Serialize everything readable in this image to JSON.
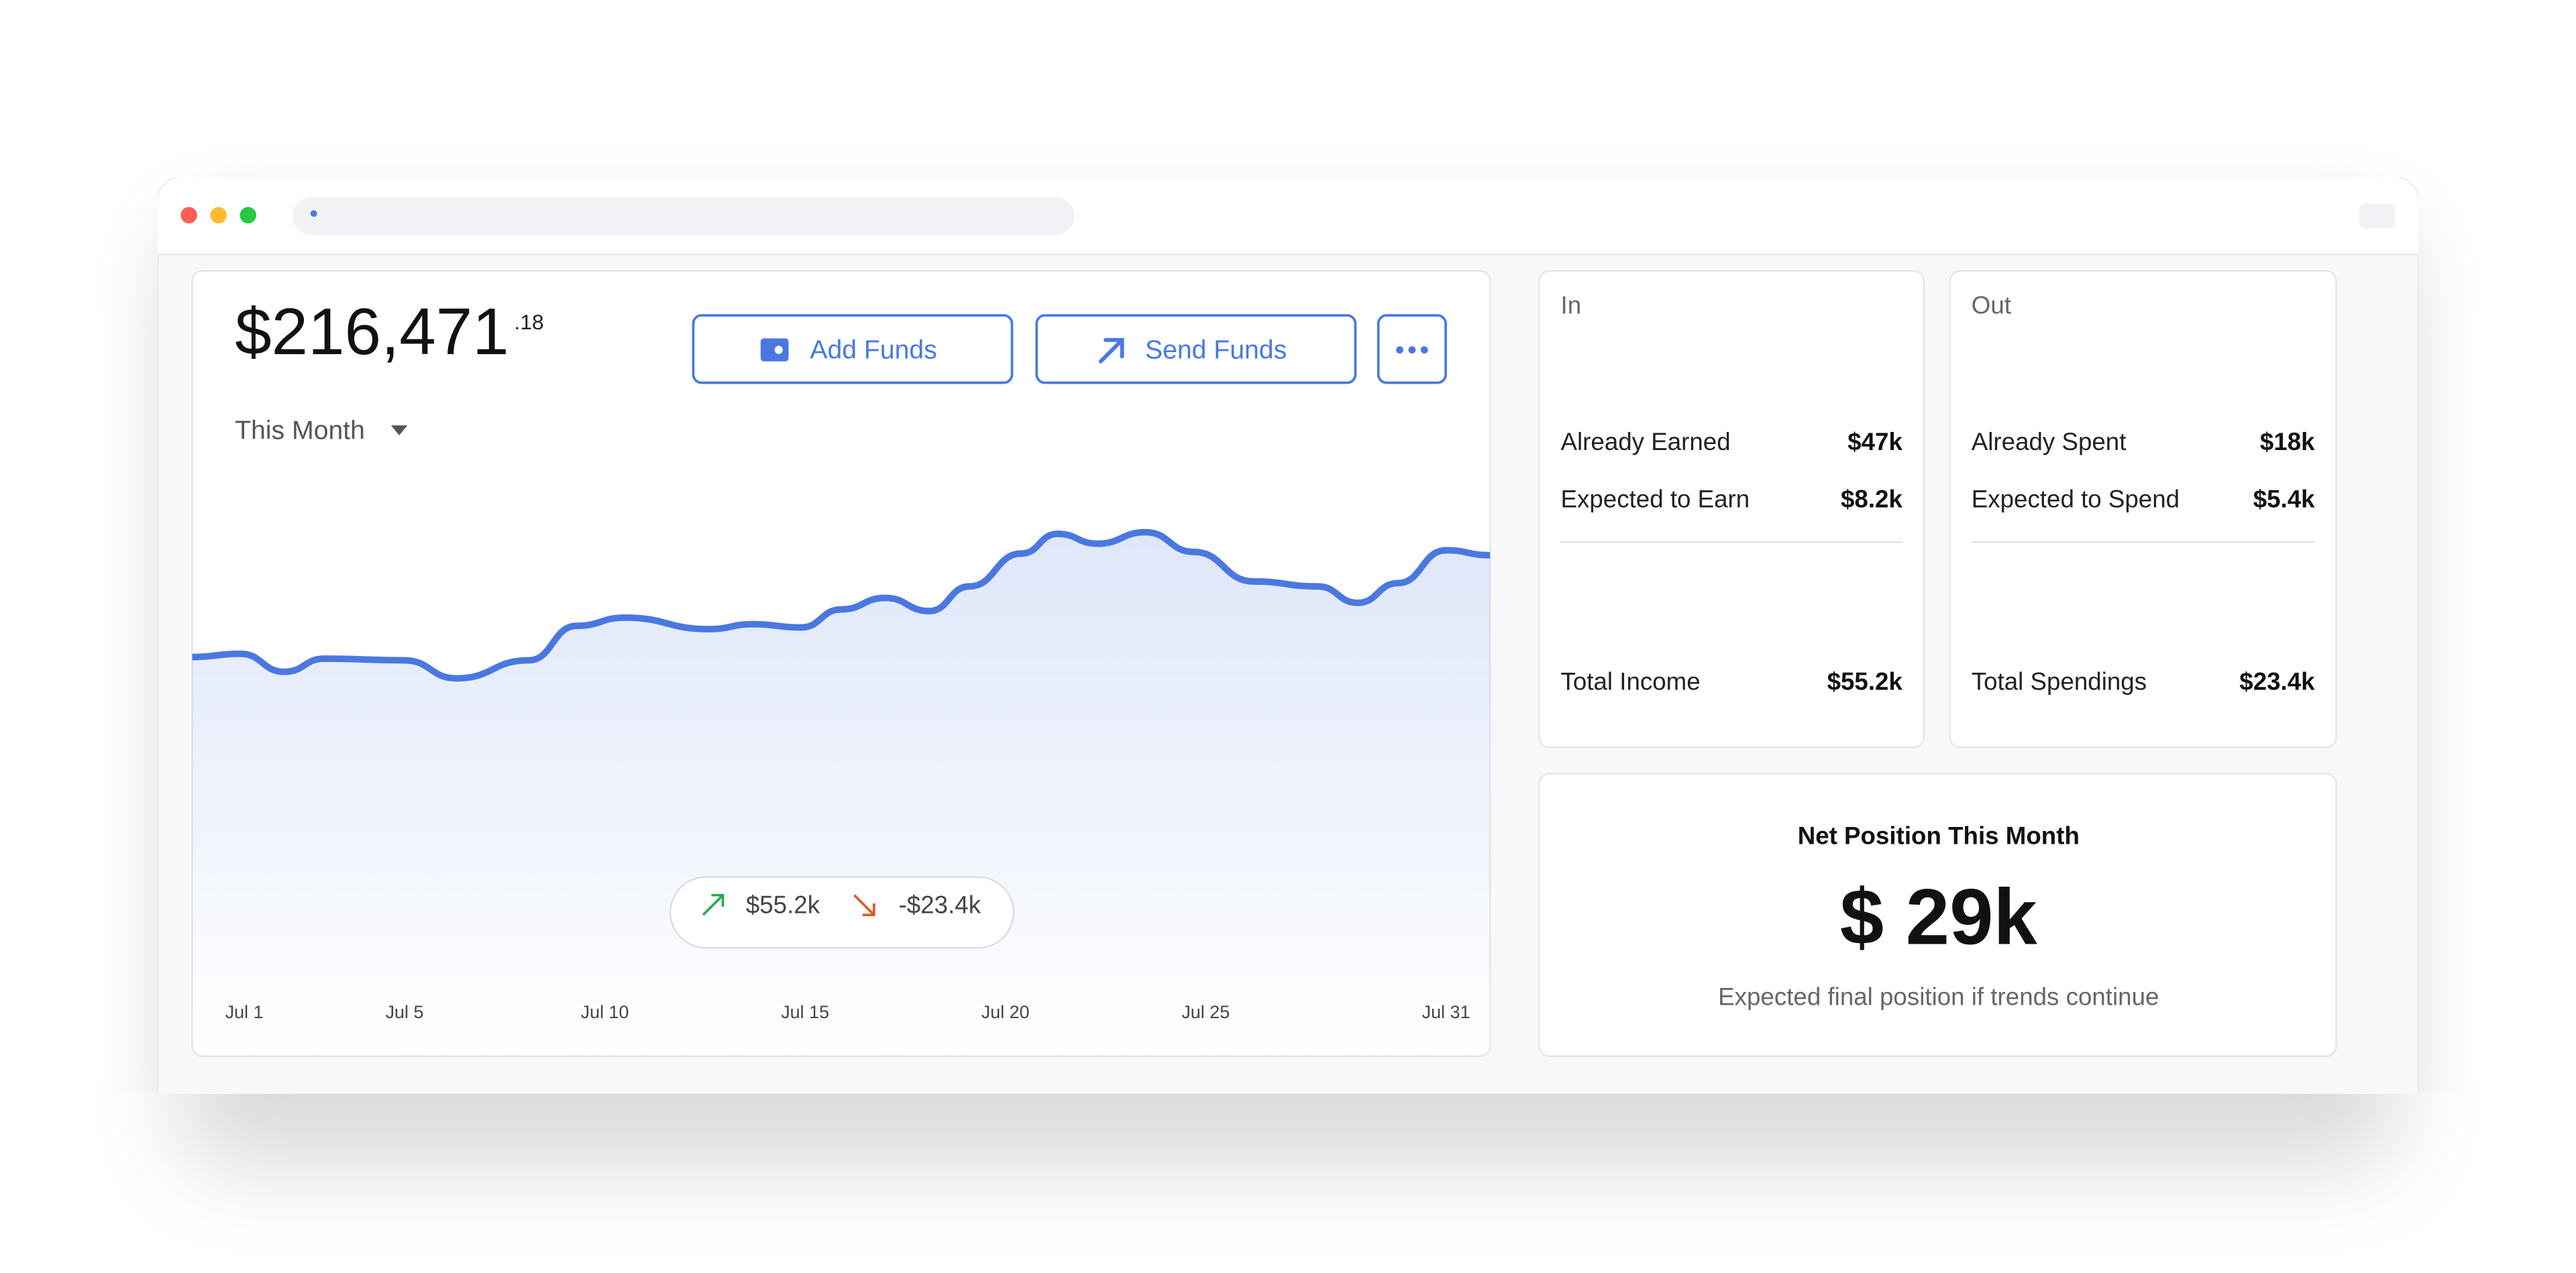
{
  "balance": {
    "amount": "$216,471",
    "cents": ".18"
  },
  "buttons": [
    "Add Funds",
    "Send Funds"
  ],
  "period": "This Month",
  "chart_data": {
    "type": "line",
    "x": [
      -0.3,
      0.9,
      2.0,
      3.0,
      5.0,
      6.3,
      8.1,
      9.3,
      10.5,
      12.6,
      13.7,
      14.9,
      15.9,
      17.0,
      18.1,
      19.1,
      20.4,
      21.3,
      22.3,
      23.5,
      24.7,
      26.2,
      27.8,
      28.8,
      29.8,
      31.0,
      32.1
    ],
    "values": [
      243,
      245,
      234,
      242,
      241,
      230,
      241,
      262,
      267,
      260,
      263,
      261,
      272,
      279,
      271,
      286,
      306,
      318,
      312,
      319,
      307,
      289,
      286,
      276,
      288,
      308,
      305
    ],
    "color": "#4a78e0",
    "xlim": [
      -0.3,
      32.1
    ],
    "ylim": [
      0,
      350
    ],
    "xticks": [
      {
        "value": 1,
        "label": "Jul 1"
      },
      {
        "value": 5,
        "label": "Jul 5"
      },
      {
        "value": 10,
        "label": "Jul 10"
      },
      {
        "value": 15,
        "label": "Jul 15"
      },
      {
        "value": 20,
        "label": "Jul 20"
      },
      {
        "value": 25,
        "label": "Jul 25"
      },
      {
        "value": 31,
        "label": "Jul 31"
      }
    ]
  },
  "summary": {
    "in": "$55.2k",
    "out": "-$23.4k"
  },
  "in_card": {
    "title": "In",
    "rows": [
      {
        "label": "Already Earned",
        "value": "$47k"
      },
      {
        "label": "Expected to Earn",
        "value": "$8.2k"
      }
    ],
    "total": {
      "label": "Total Income",
      "value": "$55.2k"
    }
  },
  "out_card": {
    "title": "Out",
    "rows": [
      {
        "label": "Already Spent",
        "value": "$18k"
      },
      {
        "label": "Expected to Spend",
        "value": "$5.4k"
      }
    ],
    "total": {
      "label": "Total Spendings",
      "value": "$23.4k"
    }
  },
  "net": {
    "title": "Net Position This Month",
    "value": "$ 29k",
    "note": "Expected final position if trends continue"
  }
}
